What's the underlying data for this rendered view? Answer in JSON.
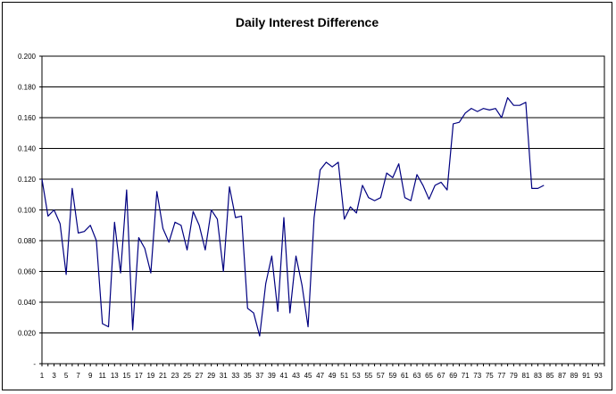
{
  "chart_data": {
    "type": "line",
    "title": "Daily Interest Difference",
    "xlabel": "",
    "ylabel": "",
    "ylim": [
      0,
      0.2
    ],
    "y_ticks": [
      "-",
      "0.020",
      "0.040",
      "0.060",
      "0.080",
      "0.100",
      "0.120",
      "0.140",
      "0.160",
      "0.180",
      "0.200"
    ],
    "x_ticks": [
      1,
      3,
      5,
      7,
      9,
      11,
      13,
      15,
      17,
      19,
      21,
      23,
      25,
      27,
      29,
      31,
      33,
      35,
      37,
      39,
      41,
      43,
      45,
      47,
      49,
      51,
      53,
      55,
      57,
      59,
      61,
      63,
      65,
      67,
      69,
      71,
      73,
      75,
      77,
      79,
      81,
      83,
      85,
      87,
      89,
      91,
      93
    ],
    "x_range": [
      1,
      94
    ],
    "grid": "horizontal",
    "line_color": "#000080",
    "series": [
      {
        "x": [
          1,
          2,
          3,
          4,
          5,
          6,
          7,
          8,
          9,
          10,
          11,
          12,
          13,
          14,
          15,
          16,
          17,
          18,
          19,
          20,
          21,
          22,
          23,
          24,
          25,
          26,
          27,
          28,
          29,
          30,
          31,
          32,
          33,
          34,
          35,
          36,
          37,
          38,
          39,
          40,
          41,
          42,
          43,
          44,
          45,
          46,
          47,
          48,
          49,
          50,
          51,
          52,
          53,
          54,
          55,
          56,
          57,
          58,
          59,
          60,
          61,
          62,
          63,
          64,
          65,
          66,
          67,
          68,
          69,
          70,
          71,
          72,
          73,
          74,
          75,
          76,
          77,
          78,
          79,
          80,
          81,
          82,
          83,
          84
        ],
        "values": [
          0.12,
          0.096,
          0.1,
          0.091,
          0.058,
          0.114,
          0.085,
          0.086,
          0.09,
          0.08,
          0.026,
          0.024,
          0.092,
          0.059,
          0.113,
          0.022,
          0.082,
          0.075,
          0.059,
          0.112,
          0.088,
          0.079,
          0.092,
          0.09,
          0.074,
          0.099,
          0.09,
          0.074,
          0.1,
          0.094,
          0.06,
          0.115,
          0.095,
          0.096,
          0.036,
          0.033,
          0.018,
          0.052,
          0.07,
          0.034,
          0.095,
          0.033,
          0.07,
          0.051,
          0.024,
          0.095,
          0.126,
          0.131,
          0.128,
          0.131,
          0.094,
          0.102,
          0.098,
          0.116,
          0.108,
          0.106,
          0.108,
          0.124,
          0.121,
          0.13,
          0.108,
          0.106,
          0.123,
          0.116,
          0.107,
          0.116,
          0.118,
          0.113,
          0.156,
          0.157,
          0.163,
          0.166,
          0.164,
          0.166,
          0.165,
          0.166,
          0.16,
          0.173,
          0.168,
          0.168,
          0.17,
          0.114,
          0.114,
          0.116
        ]
      }
    ]
  }
}
